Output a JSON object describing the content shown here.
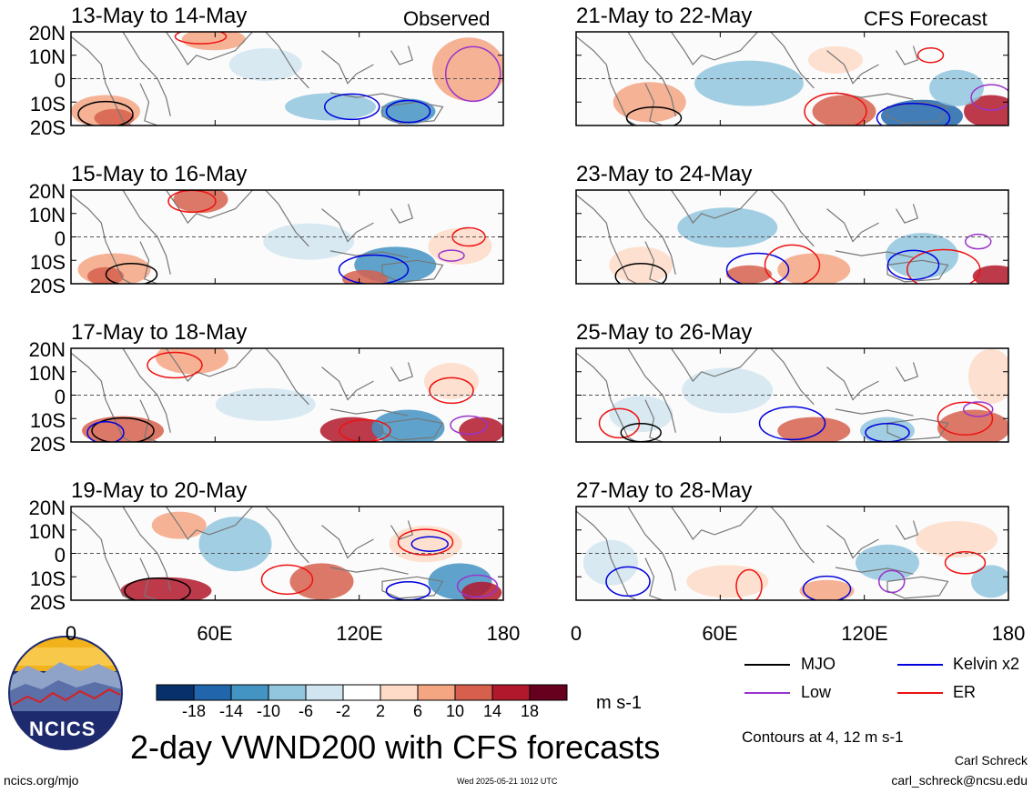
{
  "panels": [
    {
      "title": "13-May to 14-May",
      "tag": "Observed"
    },
    {
      "title": "15-May to 16-May",
      "tag": ""
    },
    {
      "title": "17-May to 18-May",
      "tag": ""
    },
    {
      "title": "19-May to 20-May",
      "tag": ""
    },
    {
      "title": "21-May to 22-May",
      "tag": "CFS Forecast"
    },
    {
      "title": "23-May to 24-May",
      "tag": ""
    },
    {
      "title": "25-May to 26-May",
      "tag": ""
    },
    {
      "title": "27-May to 28-May",
      "tag": ""
    }
  ],
  "lat_labels": [
    "20N",
    "10N",
    "0",
    "10S",
    "20S"
  ],
  "lon_labels": [
    "0",
    "60E",
    "120E",
    "180"
  ],
  "colorbar": {
    "ticks": [
      "-18",
      "-14",
      "-10",
      "-6",
      "-2",
      "2",
      "6",
      "10",
      "14",
      "18"
    ],
    "colors": [
      "#08306b",
      "#2166ac",
      "#4393c3",
      "#92c5de",
      "#d1e5f0",
      "#ffffff",
      "#fddbc7",
      "#f4a582",
      "#d6604d",
      "#b2182b",
      "#67001f"
    ],
    "units": "m s-1"
  },
  "legend": [
    {
      "label": "MJO",
      "color": "#000000"
    },
    {
      "label": "Kelvin x2",
      "color": "#0000dd"
    },
    {
      "label": "Low",
      "color": "#9933cc"
    },
    {
      "label": "ER",
      "color": "#ee1111"
    }
  ],
  "contour_note": "Contours at 4, 12 m s-1",
  "main_title": "2-day VWND200 with CFS forecasts",
  "logo_text": "NCICS",
  "site": "ncics.org/mjo",
  "timestamp": "Wed 2025-05-21 1012 UTC",
  "author": "Carl Schreck",
  "email": "carl_schreck@ncsu.edu"
}
